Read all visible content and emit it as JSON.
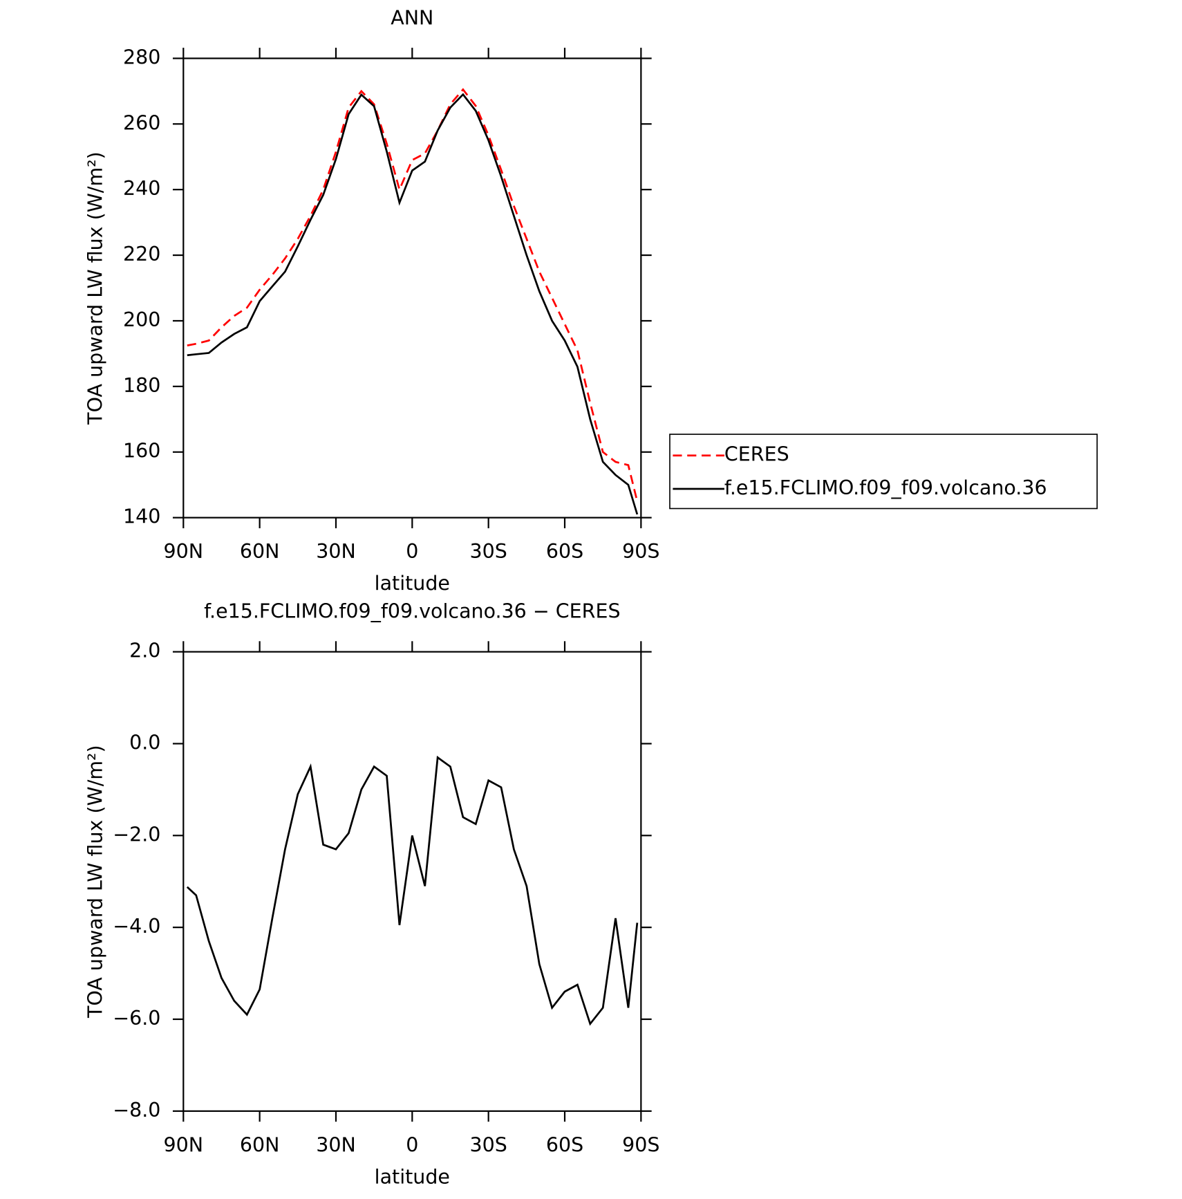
{
  "chart_data": [
    {
      "type": "line",
      "title": "ANN",
      "xlabel": "latitude",
      "ylabel": "TOA upward LW flux (W/m²)",
      "x": [
        88.5,
        85,
        80,
        75,
        70,
        65,
        60,
        55,
        50,
        45,
        40,
        35,
        30,
        25,
        20,
        15,
        10,
        5,
        0,
        -5,
        -10,
        -15,
        -20,
        -25,
        -30,
        -35,
        -40,
        -45,
        -50,
        -55,
        -60,
        -65,
        -70,
        -75,
        -80,
        -85,
        -88.5
      ],
      "xlim": [
        90,
        -90
      ],
      "xticks": [
        {
          "value": 90,
          "label": "90N"
        },
        {
          "value": 60,
          "label": "60N"
        },
        {
          "value": 30,
          "label": "30N"
        },
        0,
        {
          "value": -30,
          "label": "30S"
        },
        {
          "value": -60,
          "label": "60S"
        },
        {
          "value": -90,
          "label": "90S"
        }
      ],
      "ylim": [
        140,
        280
      ],
      "yticks": [
        140,
        160,
        180,
        200,
        220,
        240,
        260,
        280
      ],
      "legend": "right",
      "series": [
        {
          "name": "CERES",
          "color": "#ff0000",
          "dash": true,
          "values": [
            192.5,
            193,
            194,
            198,
            201.5,
            204,
            209.5,
            214,
            219,
            225,
            232,
            240,
            251.5,
            265,
            270,
            266,
            254,
            240,
            249,
            251,
            258,
            266,
            270.5,
            265.5,
            256.5,
            246,
            235,
            225,
            215,
            207,
            199,
            191,
            175,
            160,
            157,
            156,
            145
          ]
        },
        {
          "name": "f.e15.FCLIMO.f09_f09.volcano.36",
          "color": "#000000",
          "dash": false,
          "values": [
            189.5,
            189.8,
            190.2,
            193.4,
            196,
            198,
            206,
            210.5,
            215,
            222.7,
            230.8,
            238.4,
            249.3,
            263,
            268.9,
            265.4,
            251.6,
            236,
            245.8,
            248.5,
            258,
            265,
            269,
            264,
            255,
            244,
            232,
            220,
            209,
            200,
            194,
            186,
            170,
            157,
            153,
            150,
            141
          ]
        }
      ]
    },
    {
      "type": "line",
      "title": "f.e15.FCLIMO.f09_f09.volcano.36 − CERES",
      "xlabel": "latitude",
      "ylabel": "TOA upward LW flux (W/m²)",
      "x": [
        88.5,
        85,
        80,
        75,
        70,
        65,
        60,
        55,
        50,
        45,
        40,
        35,
        30,
        25,
        20,
        15,
        10,
        5,
        0,
        -5,
        -10,
        -15,
        -20,
        -25,
        -30,
        -35,
        -40,
        -45,
        -50,
        -55,
        -60,
        -65,
        -70,
        -75,
        -80,
        -85,
        -88.5
      ],
      "xlim": [
        90,
        -90
      ],
      "xticks": [
        {
          "value": 90,
          "label": "90N"
        },
        {
          "value": 60,
          "label": "60N"
        },
        {
          "value": 30,
          "label": "30N"
        },
        0,
        {
          "value": -30,
          "label": "30S"
        },
        {
          "value": -60,
          "label": "60S"
        },
        {
          "value": -90,
          "label": "90S"
        }
      ],
      "ylim": [
        -8,
        2
      ],
      "yticks": [
        {
          "value": -8,
          "label": "−8.0"
        },
        {
          "value": -6,
          "label": "−6.0"
        },
        {
          "value": -4,
          "label": "−4.0"
        },
        {
          "value": -2,
          "label": "−2.0"
        },
        {
          "value": 0,
          "label": "0.0"
        },
        {
          "value": 2,
          "label": "2.0"
        }
      ],
      "series": [
        {
          "color": "#000000",
          "dash": false,
          "values": [
            -3.12,
            -3.3,
            -4.3,
            -5.1,
            -5.6,
            -5.9,
            -5.35,
            -3.8,
            -2.3,
            -1.1,
            -0.5,
            -2.2,
            -2.3,
            -1.95,
            -1.0,
            -0.5,
            -0.7,
            -3.95,
            -2.0,
            -3.1,
            -0.3,
            -0.5,
            -1.6,
            -1.75,
            -0.8,
            -0.95,
            -2.3,
            -3.1,
            -4.8,
            -5.75,
            -5.4,
            -5.25,
            -6.1,
            -5.75,
            -3.8,
            -5.75,
            -3.9
          ]
        }
      ]
    }
  ]
}
